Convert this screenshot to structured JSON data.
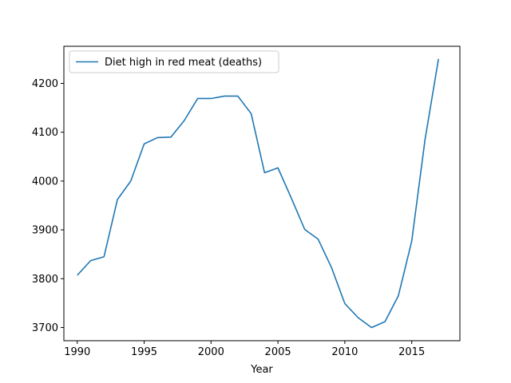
{
  "chart_data": {
    "type": "line",
    "title": "",
    "xlabel": "Year",
    "ylabel": "",
    "xlim": [
      1989,
      2018.6
    ],
    "ylim": [
      3673,
      4276
    ],
    "xticks": [
      1990,
      1995,
      2000,
      2005,
      2010,
      2015
    ],
    "yticks": [
      3700,
      3800,
      3900,
      4000,
      4100,
      4200
    ],
    "grid": false,
    "legend_position": "top-left",
    "series": [
      {
        "name": "Diet high in red meat (deaths)",
        "color": "#1f77b4",
        "x": [
          1990,
          1991,
          1992,
          1993,
          1994,
          1995,
          1996,
          1997,
          1998,
          1999,
          2000,
          2001,
          2002,
          2003,
          2004,
          2005,
          2006,
          2007,
          2008,
          2009,
          2010,
          2011,
          2012,
          2013,
          2014,
          2015,
          2016,
          2017
        ],
        "y": [
          3807,
          3837,
          3845,
          3962,
          4000,
          4076,
          4089,
          4090,
          4124,
          4169,
          4169,
          4174,
          4174,
          4138,
          4017,
          4027,
          3965,
          3901,
          3881,
          3823,
          3749,
          3720,
          3700,
          3712,
          3765,
          3877,
          4086,
          4250
        ]
      }
    ]
  }
}
